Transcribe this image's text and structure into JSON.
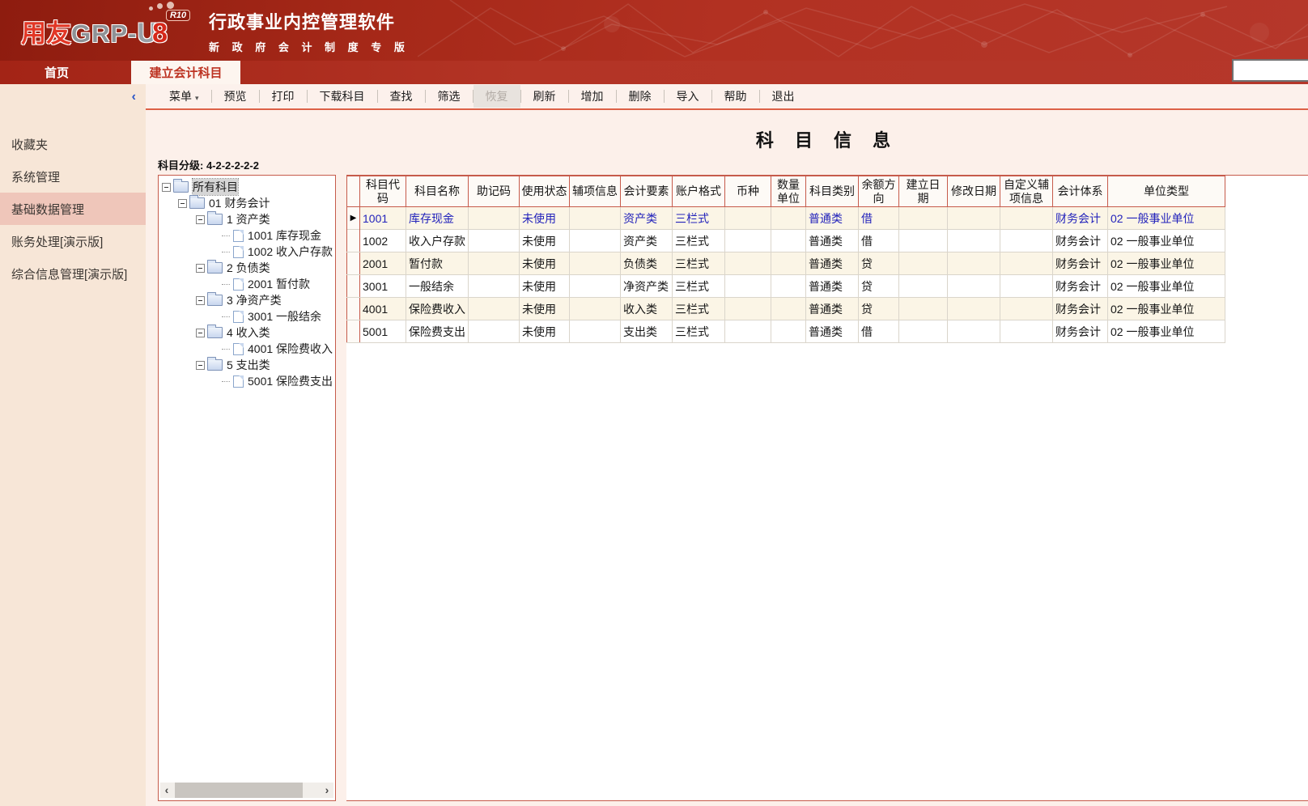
{
  "header": {
    "logo": {
      "part_yy": "用友",
      "part_grp": "GRP-",
      "part_u": "U",
      "part_8": "8",
      "badge": "R10"
    },
    "title": "行政事业内控管理软件",
    "subtitle": "新 政 府 会 计 制 度 专 版"
  },
  "tabs": [
    {
      "name": "home",
      "label": "首页",
      "active": false
    },
    {
      "name": "create-accounting-subjects",
      "label": "建立会计科目",
      "active": true
    }
  ],
  "top_right_input": {
    "value": ""
  },
  "toolbar": {
    "items": [
      {
        "name": "menu",
        "label": "菜单",
        "caret": "▾",
        "disabled": false
      },
      {
        "name": "preview",
        "label": "预览",
        "disabled": false
      },
      {
        "name": "print",
        "label": "打印",
        "disabled": false
      },
      {
        "name": "download-subjects",
        "label": "下载科目",
        "disabled": false
      },
      {
        "name": "find",
        "label": "查找",
        "disabled": false
      },
      {
        "name": "filter",
        "label": "筛选",
        "disabled": false
      },
      {
        "name": "restore",
        "label": "恢复",
        "disabled": true
      },
      {
        "name": "refresh",
        "label": "刷新",
        "disabled": false
      },
      {
        "name": "add",
        "label": "增加",
        "disabled": false
      },
      {
        "name": "delete",
        "label": "删除",
        "disabled": false
      },
      {
        "name": "import",
        "label": "导入",
        "disabled": false
      },
      {
        "name": "help",
        "label": "帮助",
        "disabled": false
      },
      {
        "name": "exit",
        "label": "退出",
        "disabled": false
      }
    ]
  },
  "sidebar": {
    "collapse_icon": "‹",
    "items": [
      {
        "name": "favorites",
        "label": "收藏夹",
        "active": false
      },
      {
        "name": "system-management",
        "label": "系统管理",
        "active": false
      },
      {
        "name": "basic-data-management",
        "label": "基础数据管理",
        "active": true
      },
      {
        "name": "accounting-processing",
        "label": "账务处理[演示版]",
        "active": false
      },
      {
        "name": "comprehensive-info-management",
        "label": "综合信息管理[演示版]",
        "active": false
      }
    ]
  },
  "main": {
    "page_title": "科 目 信 息",
    "subject_level": "科目分级: 4-2-2-2-2-2"
  },
  "tree": {
    "scroll_left": "‹",
    "scroll_right": "›",
    "nodes": [
      {
        "label": "所有科目",
        "level": 0,
        "kind": "folder",
        "selected": true
      },
      {
        "label": "01 财务会计",
        "level": 1,
        "kind": "folder",
        "selected": false
      },
      {
        "label": "1 资产类",
        "level": 2,
        "kind": "folder",
        "selected": false
      },
      {
        "label": "1001 库存现金",
        "level": 3,
        "kind": "leaf",
        "selected": false
      },
      {
        "label": "1002 收入户存款",
        "level": 3,
        "kind": "leaf",
        "selected": false
      },
      {
        "label": "2 负债类",
        "level": 2,
        "kind": "folder",
        "selected": false
      },
      {
        "label": "2001 暂付款",
        "level": 3,
        "kind": "leaf",
        "selected": false
      },
      {
        "label": "3 净资产类",
        "level": 2,
        "kind": "folder",
        "selected": false
      },
      {
        "label": "3001 一般结余",
        "level": 3,
        "kind": "leaf",
        "selected": false
      },
      {
        "label": "4 收入类",
        "level": 2,
        "kind": "folder",
        "selected": false
      },
      {
        "label": "4001 保险费收入",
        "level": 3,
        "kind": "leaf",
        "selected": false
      },
      {
        "label": "5 支出类",
        "level": 2,
        "kind": "folder",
        "selected": false
      },
      {
        "label": "5001 保险费支出",
        "level": 3,
        "kind": "leaf",
        "selected": false
      }
    ]
  },
  "table": {
    "row_indicator": "▶",
    "columns": [
      "科目代码",
      "科目名称",
      "助记码",
      "使用状态",
      "辅项信息",
      "会计要素",
      "账户格式",
      "币种",
      "数量单位",
      "科目类别",
      "余额方向",
      "建立日期",
      "修改日期",
      "自定义辅项信息",
      "会计体系",
      "单位类型"
    ],
    "rows": [
      {
        "selected": true,
        "cells": [
          "1001",
          "库存现金",
          "",
          "未使用",
          "",
          "资产类",
          "三栏式",
          "",
          "",
          "普通类",
          "借",
          "",
          "",
          "",
          "财务会计",
          "02 一般事业单位"
        ]
      },
      {
        "selected": false,
        "cells": [
          "1002",
          "收入户存款",
          "",
          "未使用",
          "",
          "资产类",
          "三栏式",
          "",
          "",
          "普通类",
          "借",
          "",
          "",
          "",
          "财务会计",
          "02 一般事业单位"
        ]
      },
      {
        "selected": false,
        "cells": [
          "2001",
          "暂付款",
          "",
          "未使用",
          "",
          "负债类",
          "三栏式",
          "",
          "",
          "普通类",
          "贷",
          "",
          "",
          "",
          "财务会计",
          "02 一般事业单位"
        ]
      },
      {
        "selected": false,
        "cells": [
          "3001",
          "一般结余",
          "",
          "未使用",
          "",
          "净资产类",
          "三栏式",
          "",
          "",
          "普通类",
          "贷",
          "",
          "",
          "",
          "财务会计",
          "02 一般事业单位"
        ]
      },
      {
        "selected": false,
        "cells": [
          "4001",
          "保险费收入",
          "",
          "未使用",
          "",
          "收入类",
          "三栏式",
          "",
          "",
          "普通类",
          "贷",
          "",
          "",
          "",
          "财务会计",
          "02 一般事业单位"
        ]
      },
      {
        "selected": false,
        "cells": [
          "5001",
          "保险费支出",
          "",
          "未使用",
          "",
          "支出类",
          "三栏式",
          "",
          "",
          "普通类",
          "借",
          "",
          "",
          "",
          "财务会计",
          "02 一般事业单位"
        ]
      }
    ]
  },
  "colors": {
    "banner_red_dark": "#8e1c0f",
    "banner_red": "#b5372a",
    "panel_border_red": "#c65b4b",
    "toolbar_line": "#dd6147",
    "sidebar_bg": "#f7e6d7",
    "sidebar_active_bg": "#efc6ba",
    "content_bg": "#fcf0ea",
    "toolbar_bg": "#fcf1ec",
    "row_alt_bg": "#fbf5e6",
    "header_cell_bg": "#fdfaf6",
    "selected_text_blue": "#2323bb",
    "tab_active_text": "#bd3322"
  }
}
